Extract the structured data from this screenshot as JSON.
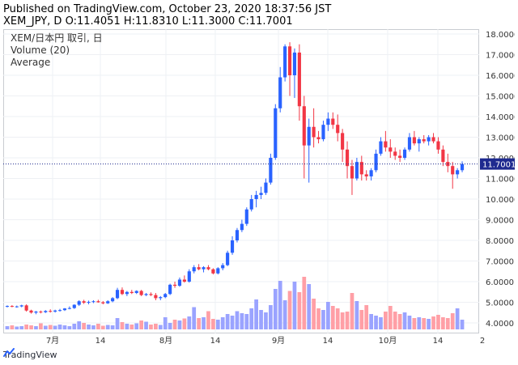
{
  "header": {
    "line1": "Published on TradingView.com, October 23, 2020 18:37:56 JST",
    "line2": "XEM_JPY, D O:11.4051 H:11.8310 L:11.3000 C:11.7001"
  },
  "legend": {
    "symbol": "XEM/日本円 取引, 日",
    "volume": "Volume (20)",
    "average": "Average"
  },
  "branding": {
    "logo_text": "TradingView"
  },
  "colors": {
    "up": "#2962ff",
    "down": "#f23645",
    "vol_up": "#9aa3ff",
    "vol_down": "#ff9fa6",
    "last_price_bg": "#1e2a8f",
    "grid": "#eef0f4"
  },
  "chart_data": {
    "type": "candlestick",
    "symbol": "XEM_JPY",
    "interval": "D",
    "y_axis_ticks": [
      "18.0000",
      "17.0000",
      "16.0000",
      "15.0000",
      "14.0000",
      "13.0000",
      "12.0000",
      "11.0000",
      "10.0000",
      "9.0000",
      "8.0000",
      "7.0000",
      "6.0000",
      "5.0000",
      "4.0000"
    ],
    "ylim": [
      3.5,
      18.2
    ],
    "x_axis_labels": [
      "7月",
      "14",
      "8月",
      "14",
      "9月",
      "14",
      "10月",
      "14",
      "2"
    ],
    "last_price": "11.7001",
    "ohlc": [
      [
        4.8,
        4.85,
        4.75,
        4.82
      ],
      [
        4.82,
        4.86,
        4.76,
        4.78
      ],
      [
        4.78,
        4.84,
        4.74,
        4.8
      ],
      [
        4.8,
        4.88,
        4.76,
        4.85
      ],
      [
        4.85,
        4.9,
        4.55,
        4.6
      ],
      [
        4.6,
        4.64,
        4.45,
        4.5
      ],
      [
        4.5,
        4.58,
        4.42,
        4.55
      ],
      [
        4.55,
        4.6,
        4.46,
        4.52
      ],
      [
        4.52,
        4.62,
        4.48,
        4.58
      ],
      [
        4.58,
        4.66,
        4.5,
        4.55
      ],
      [
        4.55,
        4.64,
        4.5,
        4.6
      ],
      [
        4.6,
        4.68,
        4.55,
        4.62
      ],
      [
        4.62,
        4.72,
        4.58,
        4.7
      ],
      [
        4.7,
        4.8,
        4.66,
        4.72
      ],
      [
        4.72,
        4.9,
        4.68,
        4.88
      ],
      [
        4.88,
        5.1,
        4.82,
        5.05
      ],
      [
        5.05,
        5.12,
        4.92,
        4.98
      ],
      [
        4.98,
        5.08,
        4.9,
        5.02
      ],
      [
        5.02,
        5.1,
        4.96,
        5.05
      ],
      [
        5.05,
        5.12,
        4.98,
        5.0
      ],
      [
        5.0,
        5.06,
        4.9,
        4.95
      ],
      [
        4.95,
        5.1,
        4.92,
        5.05
      ],
      [
        5.05,
        5.25,
        5.0,
        5.2
      ],
      [
        5.2,
        5.7,
        5.15,
        5.6
      ],
      [
        5.6,
        5.72,
        5.35,
        5.4
      ],
      [
        5.4,
        5.55,
        5.3,
        5.5
      ],
      [
        5.5,
        5.6,
        5.4,
        5.45
      ],
      [
        5.45,
        5.58,
        5.4,
        5.55
      ],
      [
        5.55,
        5.6,
        5.3,
        5.35
      ],
      [
        5.35,
        5.45,
        5.3,
        5.4
      ],
      [
        5.4,
        5.48,
        5.3,
        5.35
      ],
      [
        5.35,
        5.45,
        5.1,
        5.2
      ],
      [
        5.2,
        5.3,
        5.1,
        5.25
      ],
      [
        5.25,
        5.45,
        5.2,
        5.4
      ],
      [
        5.4,
        5.9,
        5.35,
        5.85
      ],
      [
        5.85,
        6.0,
        5.7,
        5.8
      ],
      [
        5.8,
        6.2,
        5.75,
        6.1
      ],
      [
        6.1,
        6.3,
        5.95,
        6.0
      ],
      [
        6.0,
        6.6,
        5.95,
        6.5
      ],
      [
        6.5,
        6.8,
        6.4,
        6.7
      ],
      [
        6.7,
        6.85,
        6.55,
        6.6
      ],
      [
        6.6,
        6.75,
        6.45,
        6.7
      ],
      [
        6.7,
        6.8,
        6.55,
        6.6
      ],
      [
        6.6,
        6.65,
        6.35,
        6.4
      ],
      [
        6.4,
        6.7,
        6.35,
        6.65
      ],
      [
        6.65,
        6.9,
        6.55,
        6.8
      ],
      [
        6.8,
        7.5,
        6.75,
        7.4
      ],
      [
        7.4,
        8.2,
        7.3,
        8.0
      ],
      [
        8.0,
        8.6,
        7.9,
        8.5
      ],
      [
        8.5,
        9.0,
        8.4,
        8.8
      ],
      [
        8.8,
        9.6,
        8.7,
        9.5
      ],
      [
        9.5,
        10.2,
        9.4,
        10.0
      ],
      [
        10.0,
        10.4,
        9.6,
        10.2
      ],
      [
        10.2,
        10.6,
        10.0,
        10.3
      ],
      [
        10.3,
        11.0,
        10.2,
        10.8
      ],
      [
        10.8,
        12.2,
        10.7,
        12.0
      ],
      [
        12.0,
        14.6,
        11.9,
        14.4
      ],
      [
        14.4,
        16.4,
        14.2,
        15.9
      ],
      [
        15.9,
        17.5,
        15.7,
        17.4
      ],
      [
        17.4,
        17.6,
        15.0,
        16.0
      ],
      [
        16.0,
        17.3,
        14.9,
        17.1
      ],
      [
        17.1,
        17.5,
        13.8,
        14.5
      ],
      [
        14.5,
        15.0,
        11.0,
        12.6
      ],
      [
        12.6,
        13.9,
        10.8,
        13.5
      ],
      [
        13.5,
        14.4,
        12.5,
        13.0
      ],
      [
        13.0,
        13.3,
        12.7,
        12.9
      ],
      [
        12.9,
        13.8,
        12.8,
        13.6
      ],
      [
        13.6,
        14.2,
        13.3,
        13.9
      ],
      [
        13.9,
        14.2,
        13.4,
        13.6
      ],
      [
        13.6,
        14.1,
        12.8,
        13.2
      ],
      [
        13.2,
        13.4,
        11.8,
        12.4
      ],
      [
        12.4,
        12.8,
        11.0,
        11.6
      ],
      [
        11.6,
        11.9,
        10.2,
        11.0
      ],
      [
        11.0,
        12.0,
        10.9,
        11.8
      ],
      [
        11.8,
        12.1,
        10.9,
        11.2
      ],
      [
        11.2,
        11.4,
        10.9,
        11.1
      ],
      [
        11.1,
        11.5,
        10.9,
        11.4
      ],
      [
        11.4,
        12.4,
        11.3,
        12.2
      ],
      [
        12.2,
        13.0,
        12.1,
        12.8
      ],
      [
        12.8,
        13.3,
        12.3,
        12.5
      ],
      [
        12.5,
        12.9,
        12.0,
        12.3
      ],
      [
        12.3,
        12.5,
        11.9,
        12.1
      ],
      [
        12.1,
        12.4,
        11.8,
        12.0
      ],
      [
        12.0,
        12.5,
        11.9,
        12.4
      ],
      [
        12.4,
        13.2,
        12.3,
        13.0
      ],
      [
        13.0,
        13.3,
        12.6,
        12.7
      ],
      [
        12.7,
        13.0,
        12.3,
        12.9
      ],
      [
        12.9,
        13.1,
        12.7,
        12.8
      ],
      [
        12.8,
        13.1,
        12.6,
        13.0
      ],
      [
        13.0,
        13.2,
        12.7,
        12.8
      ],
      [
        12.8,
        13.0,
        12.2,
        12.4
      ],
      [
        12.4,
        12.6,
        11.6,
        11.8
      ],
      [
        11.8,
        12.2,
        11.3,
        11.6
      ],
      [
        11.6,
        11.8,
        10.5,
        11.2
      ],
      [
        11.2,
        11.5,
        11.0,
        11.4
      ],
      [
        11.4,
        11.83,
        11.3,
        11.7
      ]
    ],
    "volume": [
      8,
      10,
      7,
      8,
      12,
      10,
      8,
      15,
      9,
      11,
      9,
      12,
      10,
      8,
      14,
      20,
      16,
      12,
      10,
      14,
      9,
      11,
      10,
      28,
      18,
      14,
      12,
      15,
      22,
      19,
      12,
      14,
      11,
      30,
      16,
      24,
      22,
      27,
      32,
      55,
      28,
      30,
      45,
      26,
      24,
      30,
      38,
      34,
      45,
      40,
      38,
      52,
      74,
      48,
      42,
      60,
      100,
      120,
      72,
      95,
      118,
      92,
      130,
      112,
      76,
      52,
      48,
      68,
      58,
      52,
      42,
      44,
      90,
      70,
      48,
      60,
      38,
      34,
      30,
      44,
      58,
      44,
      38,
      42,
      34,
      28,
      30,
      28,
      26,
      32,
      36,
      30,
      28,
      40,
      52,
      24
    ]
  }
}
